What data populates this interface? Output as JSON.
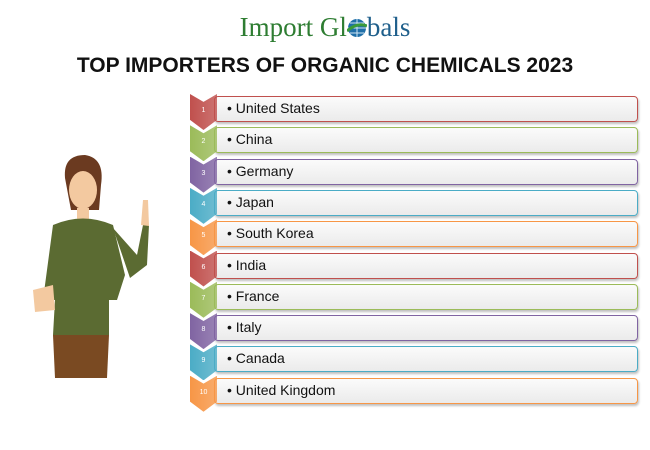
{
  "logo": {
    "part1": "Import Gl",
    "part2": "bals"
  },
  "title": "TOP IMPORTERS OF ORGANIC CHEMICALS 2023",
  "items": [
    {
      "rank": "1",
      "label": "• United States",
      "color": "#c0504d"
    },
    {
      "rank": "2",
      "label": "• China",
      "color": "#9bbb59"
    },
    {
      "rank": "3",
      "label": "• Germany",
      "color": "#8064a2"
    },
    {
      "rank": "4",
      "label": "• Japan",
      "color": "#4bacc6"
    },
    {
      "rank": "5",
      "label": "• South Korea",
      "color": "#f79646"
    },
    {
      "rank": "6",
      "label": "• India",
      "color": "#c0504d"
    },
    {
      "rank": "7",
      "label": "• France",
      "color": "#9bbb59"
    },
    {
      "rank": "8",
      "label": "• Italy",
      "color": "#8064a2"
    },
    {
      "rank": "9",
      "label": "• Canada",
      "color": "#4bacc6"
    },
    {
      "rank": "10",
      "label": "• United Kingdom",
      "color": "#f79646"
    }
  ]
}
